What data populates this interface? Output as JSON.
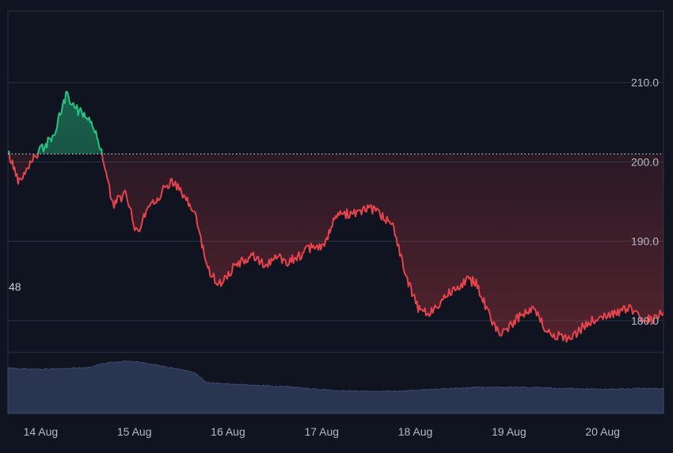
{
  "theme": {
    "background": "#0f1420",
    "grid": "#2a3140",
    "frame": "#2a3140",
    "up_color": "#26c281",
    "down_color": "#e8434c",
    "volume_color": "#2f3b5c",
    "text_color": "#b4bac6"
  },
  "chart_data": {
    "type": "area",
    "baseline": {
      "value": 201.0,
      "style": "dotted"
    },
    "y_axis": {
      "position": "right",
      "ylim": [
        176,
        219
      ],
      "ticks": [
        210.0,
        200.0,
        190.0,
        180.0
      ],
      "tick_labels": [
        "210.0",
        "200.0",
        "190.0",
        "180.0"
      ]
    },
    "x_axis": {
      "tick_labels": [
        "14 Aug",
        "15 Aug",
        "16 Aug",
        "17 Aug",
        "18 Aug",
        "19 Aug",
        "20 Aug"
      ]
    },
    "volume_pane": {
      "label": "48",
      "ylim": [
        0,
        100
      ]
    },
    "series": [
      {
        "name": "",
        "x": [
          0,
          0.12,
          0.25,
          0.38,
          0.5,
          0.62,
          0.75,
          0.88,
          1,
          1.12,
          1.25,
          1.38,
          1.5,
          1.62,
          1.75,
          1.88,
          2,
          2.12,
          2.25,
          2.38,
          2.5,
          2.62,
          2.75,
          2.88,
          3,
          3.12,
          3.25,
          3.38,
          3.5,
          3.62,
          3.75,
          3.88,
          4,
          4.12,
          4.25,
          4.38,
          4.5,
          4.62,
          4.75,
          4.88,
          5,
          5.12,
          5.25,
          5.38,
          5.5,
          5.62,
          5.75,
          5.88,
          6,
          6.12,
          6.25,
          6.38,
          6.5,
          6.62,
          6.75,
          6.88,
          7
        ],
        "price": [
          201.2,
          197.5,
          200.3,
          201.8,
          203.6,
          208.4,
          206.5,
          205.4,
          201.4,
          194.5,
          196.0,
          191.0,
          194.5,
          195.8,
          197.8,
          195.5,
          193.5,
          187.0,
          184.5,
          186.3,
          187.5,
          188.0,
          187.0,
          188.0,
          187.5,
          188.3,
          189.2,
          189.5,
          193.0,
          193.5,
          193.8,
          194.0,
          193.0,
          192.0,
          185.5,
          181.5,
          180.8,
          182.5,
          184.0,
          185.0,
          185.0,
          181.0,
          178.5,
          179.5,
          181.0,
          181.5,
          178.5,
          178.0,
          177.5,
          179.0,
          180.0,
          180.5,
          181.0,
          181.5,
          180.5,
          180.0,
          181.0
        ],
        "volume": [
          82,
          81,
          80,
          80,
          80,
          81,
          82,
          83,
          90,
          92,
          94,
          93,
          90,
          86,
          82,
          78,
          72,
          56,
          54,
          53,
          52,
          51,
          50,
          49,
          48,
          46,
          44,
          43,
          41,
          41,
          40,
          40,
          40,
          40,
          41,
          42,
          43,
          44,
          45,
          46,
          47,
          47,
          47,
          47,
          47,
          47,
          46,
          45,
          45,
          44,
          44,
          44,
          44,
          44,
          45,
          45,
          44
        ]
      }
    ]
  }
}
